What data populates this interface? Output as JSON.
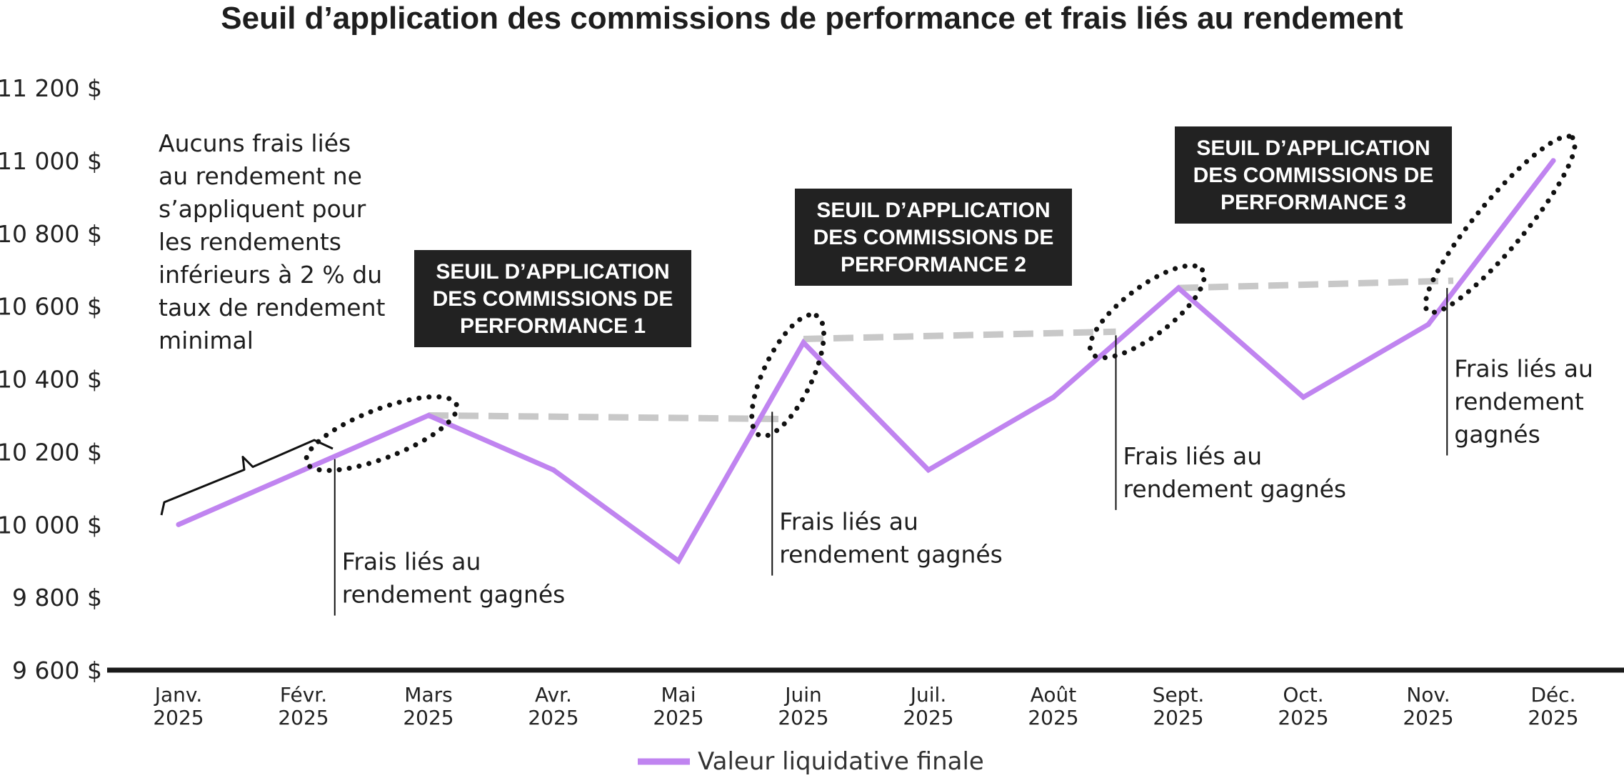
{
  "chart_data": {
    "type": "line",
    "title": "Seuil d’application des commissions de performance et frais liés au rendement",
    "categories": [
      [
        "Janv.",
        "2025"
      ],
      [
        "Févr.",
        "2025"
      ],
      [
        "Mars",
        "2025"
      ],
      [
        "Avr.",
        "2025"
      ],
      [
        "Mai",
        "2025"
      ],
      [
        "Juin",
        "2025"
      ],
      [
        "Juil.",
        "2025"
      ],
      [
        "Août",
        "2025"
      ],
      [
        "Sept.",
        "2025"
      ],
      [
        "Oct.",
        "2025"
      ],
      [
        "Nov.",
        "2025"
      ],
      [
        "Déc.",
        "2025"
      ]
    ],
    "series": [
      {
        "name": "Valeur liquidative finale",
        "color": "#c084f0",
        "x": [
          0,
          1,
          2,
          3,
          4,
          5,
          6,
          7,
          8,
          9,
          10,
          11
        ],
        "values": [
          10000,
          10150,
          10300,
          10150,
          9900,
          10500,
          10150,
          10350,
          10650,
          10350,
          10550,
          11000
        ]
      }
    ],
    "hurdle_lines": [
      {
        "color": "#c8c8c8",
        "x": [
          2,
          4.85
        ],
        "values": [
          10300,
          10290
        ]
      },
      {
        "color": "#c8c8c8",
        "x": [
          5,
          7.5
        ],
        "values": [
          10510,
          10530
        ]
      },
      {
        "color": "#c8c8c8",
        "x": [
          8,
          10.2
        ],
        "values": [
          10650,
          10670
        ]
      }
    ],
    "fee_markers": [
      {
        "x": 1.25,
        "from": 10180,
        "to": 9750,
        "text": [
          "Frais liés au",
          "rendement gagnés"
        ]
      },
      {
        "x": 4.75,
        "from": 10310,
        "to": 9860,
        "text": [
          "Frais liés au",
          "rendement gagnés"
        ]
      },
      {
        "x": 7.5,
        "from": 10520,
        "to": 10040,
        "text": [
          "Frais liés au",
          "rendement gagnés"
        ]
      },
      {
        "x": 10.15,
        "from": 10650,
        "to": 10190,
        "text": [
          "Frais liés au",
          "rendement",
          "gagnés"
        ]
      }
    ],
    "dotted_ellipses": [
      {
        "x1": 1.25,
        "y1": 10200,
        "x2": 2.0,
        "y2": 10300
      },
      {
        "x1": 4.75,
        "y1": 10320,
        "x2": 5.0,
        "y2": 10500
      },
      {
        "x1": 7.5,
        "y1": 10520,
        "x2": 8.0,
        "y2": 10650
      },
      {
        "x1": 10.15,
        "y1": 10650,
        "x2": 11.0,
        "y2": 11000
      }
    ],
    "threshold_labels": [
      [
        "SEUIL D’APPLICATION",
        "DES COMMISSIONS DE",
        "PERFORMANCE 1"
      ],
      [
        "SEUIL D’APPLICATION",
        "DES COMMISSIONS DE",
        "PERFORMANCE 2"
      ],
      [
        "SEUIL D’APPLICATION",
        "DES COMMISSIONS DE",
        "PERFORMANCE 3"
      ]
    ],
    "bracket_note": [
      "Aucuns frais liés",
      "au rendement ne",
      "s’appliquent pour",
      "les rendements",
      "inférieurs à 2 % du",
      "taux de rendement",
      "minimal"
    ],
    "yticks": [
      9600,
      9800,
      10000,
      10200,
      10400,
      10600,
      10800,
      11000,
      11200
    ],
    "ytick_labels": [
      "9 600 $",
      "9 800 $",
      "10 000 $",
      "10 200 $",
      "10 400 $",
      "10 600 $",
      "10 800 $",
      "11 000 $",
      "11 200 $"
    ],
    "ylim": [
      9600,
      11200
    ],
    "xlabel": "",
    "ylabel": "",
    "grid": false,
    "legend_position": "bottom-center"
  }
}
